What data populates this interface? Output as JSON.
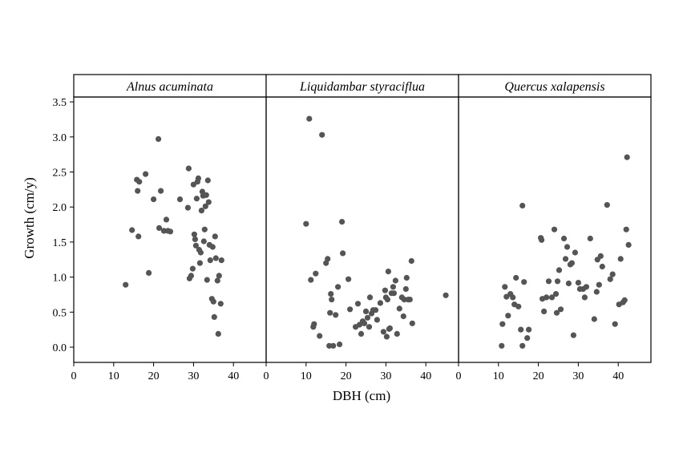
{
  "chart_data": [
    {
      "type": "scatter",
      "title": "Alnus acuminata",
      "xlabel": "DBH (cm)",
      "ylabel": "Growth (cm/y)",
      "xlim": [
        0,
        48
      ],
      "ylim": [
        -0.2,
        3.55
      ],
      "xticks": [
        0,
        10,
        20,
        30,
        40
      ],
      "yticks": [
        0.0,
        0.5,
        1.0,
        1.5,
        2.0,
        2.5,
        3.0,
        3.5
      ],
      "point_color": "#555555",
      "points": [
        [
          13.0,
          0.89
        ],
        [
          14.6,
          1.67
        ],
        [
          15.8,
          2.39
        ],
        [
          16.0,
          2.23
        ],
        [
          16.2,
          1.58
        ],
        [
          16.4,
          2.36
        ],
        [
          18.0,
          2.47
        ],
        [
          18.8,
          1.06
        ],
        [
          20.0,
          2.11
        ],
        [
          21.2,
          2.97
        ],
        [
          21.4,
          1.7
        ],
        [
          21.8,
          2.23
        ],
        [
          22.6,
          1.66
        ],
        [
          23.2,
          1.82
        ],
        [
          23.6,
          1.66
        ],
        [
          24.2,
          1.65
        ],
        [
          26.6,
          2.11
        ],
        [
          28.6,
          1.99
        ],
        [
          28.8,
          2.55
        ],
        [
          29.0,
          0.98
        ],
        [
          29.4,
          1.02
        ],
        [
          29.8,
          1.12
        ],
        [
          30.0,
          2.32
        ],
        [
          30.2,
          1.61
        ],
        [
          30.4,
          1.54
        ],
        [
          30.6,
          1.45
        ],
        [
          30.8,
          2.12
        ],
        [
          31.0,
          2.36
        ],
        [
          31.2,
          2.41
        ],
        [
          31.4,
          1.39
        ],
        [
          31.6,
          1.2
        ],
        [
          31.8,
          1.35
        ],
        [
          32.0,
          1.95
        ],
        [
          32.2,
          2.22
        ],
        [
          32.4,
          2.16
        ],
        [
          32.6,
          1.51
        ],
        [
          32.8,
          1.68
        ],
        [
          33.0,
          2.01
        ],
        [
          33.2,
          2.17
        ],
        [
          33.4,
          0.96
        ],
        [
          33.6,
          2.38
        ],
        [
          33.8,
          2.07
        ],
        [
          34.0,
          1.46
        ],
        [
          34.2,
          1.24
        ],
        [
          34.6,
          0.69
        ],
        [
          34.8,
          1.43
        ],
        [
          35.0,
          0.65
        ],
        [
          35.2,
          0.43
        ],
        [
          35.4,
          1.58
        ],
        [
          35.6,
          1.27
        ],
        [
          36.0,
          0.95
        ],
        [
          36.2,
          0.19
        ],
        [
          36.4,
          1.02
        ],
        [
          36.8,
          0.62
        ],
        [
          37.0,
          1.24
        ]
      ]
    },
    {
      "type": "scatter",
      "title": "Liquidambar styraciflua",
      "xlabel": "DBH (cm)",
      "ylabel": "Growth (cm/y)",
      "xlim": [
        0,
        48
      ],
      "ylim": [
        -0.2,
        3.55
      ],
      "xticks": [
        0,
        10,
        20,
        30,
        40
      ],
      "yticks": [
        0.0,
        0.5,
        1.0,
        1.5,
        2.0,
        2.5,
        3.0,
        3.5
      ],
      "point_color": "#555555",
      "points": [
        [
          10.0,
          1.76
        ],
        [
          10.8,
          3.26
        ],
        [
          11.2,
          0.96
        ],
        [
          11.8,
          0.29
        ],
        [
          12.0,
          0.33
        ],
        [
          12.4,
          1.05
        ],
        [
          13.4,
          0.16
        ],
        [
          14.0,
          3.03
        ],
        [
          15.0,
          1.2
        ],
        [
          15.4,
          1.26
        ],
        [
          15.8,
          0.02
        ],
        [
          16.0,
          0.49
        ],
        [
          16.2,
          0.76
        ],
        [
          16.4,
          0.68
        ],
        [
          16.8,
          0.02
        ],
        [
          17.4,
          0.46
        ],
        [
          18.0,
          0.86
        ],
        [
          18.4,
          0.04
        ],
        [
          19.0,
          1.79
        ],
        [
          19.2,
          1.34
        ],
        [
          20.6,
          0.97
        ],
        [
          21.0,
          0.54
        ],
        [
          22.4,
          0.29
        ],
        [
          23.0,
          0.62
        ],
        [
          23.4,
          0.32
        ],
        [
          23.8,
          0.19
        ],
        [
          24.2,
          0.37
        ],
        [
          24.6,
          0.34
        ],
        [
          25.0,
          0.51
        ],
        [
          25.4,
          0.42
        ],
        [
          25.8,
          0.29
        ],
        [
          26.0,
          0.71
        ],
        [
          26.4,
          0.48
        ],
        [
          26.8,
          0.53
        ],
        [
          27.4,
          0.53
        ],
        [
          27.8,
          0.39
        ],
        [
          28.6,
          0.63
        ],
        [
          29.4,
          0.22
        ],
        [
          29.8,
          0.81
        ],
        [
          30.0,
          0.71
        ],
        [
          30.2,
          0.15
        ],
        [
          30.4,
          0.68
        ],
        [
          30.6,
          1.08
        ],
        [
          30.8,
          0.26
        ],
        [
          31.0,
          0.27
        ],
        [
          31.4,
          0.77
        ],
        [
          31.8,
          0.86
        ],
        [
          32.0,
          0.77
        ],
        [
          32.4,
          0.95
        ],
        [
          32.8,
          0.19
        ],
        [
          33.4,
          0.55
        ],
        [
          34.0,
          0.71
        ],
        [
          34.4,
          0.44
        ],
        [
          34.6,
          0.68
        ],
        [
          35.0,
          0.83
        ],
        [
          35.2,
          0.99
        ],
        [
          35.6,
          0.68
        ],
        [
          36.0,
          0.68
        ],
        [
          36.4,
          1.23
        ],
        [
          36.6,
          0.34
        ],
        [
          45.0,
          0.74
        ]
      ]
    },
    {
      "type": "scatter",
      "title": "Quercus xalapensis",
      "xlabel": "DBH (cm)",
      "ylabel": "Growth (cm/y)",
      "xlim": [
        0,
        48
      ],
      "ylim": [
        -0.2,
        3.55
      ],
      "xticks": [
        0,
        10,
        20,
        30,
        40
      ],
      "yticks": [
        0.0,
        0.5,
        1.0,
        1.5,
        2.0,
        2.5,
        3.0,
        3.5
      ],
      "point_color": "#555555",
      "points": [
        [
          10.8,
          0.02
        ],
        [
          11.0,
          0.33
        ],
        [
          11.6,
          0.86
        ],
        [
          12.0,
          0.72
        ],
        [
          12.4,
          0.45
        ],
        [
          13.0,
          0.76
        ],
        [
          13.6,
          0.71
        ],
        [
          14.0,
          0.61
        ],
        [
          14.4,
          0.99
        ],
        [
          15.0,
          0.58
        ],
        [
          15.6,
          0.25
        ],
        [
          16.0,
          2.02
        ],
        [
          16.0,
          0.02
        ],
        [
          16.4,
          0.93
        ],
        [
          17.2,
          0.13
        ],
        [
          17.6,
          0.25
        ],
        [
          20.6,
          1.56
        ],
        [
          20.8,
          1.53
        ],
        [
          21.0,
          0.69
        ],
        [
          21.4,
          0.51
        ],
        [
          22.0,
          0.71
        ],
        [
          22.6,
          0.94
        ],
        [
          23.4,
          0.71
        ],
        [
          24.0,
          1.68
        ],
        [
          24.4,
          0.76
        ],
        [
          24.6,
          0.49
        ],
        [
          24.8,
          0.94
        ],
        [
          25.2,
          1.1
        ],
        [
          25.6,
          0.54
        ],
        [
          26.4,
          1.55
        ],
        [
          26.8,
          1.26
        ],
        [
          27.2,
          1.43
        ],
        [
          27.6,
          0.91
        ],
        [
          28.0,
          1.18
        ],
        [
          28.4,
          1.2
        ],
        [
          28.8,
          0.17
        ],
        [
          29.2,
          1.35
        ],
        [
          30.0,
          0.92
        ],
        [
          30.4,
          0.83
        ],
        [
          31.2,
          0.83
        ],
        [
          31.6,
          0.71
        ],
        [
          32.0,
          0.86
        ],
        [
          33.0,
          1.55
        ],
        [
          34.0,
          0.4
        ],
        [
          34.6,
          0.79
        ],
        [
          34.8,
          1.25
        ],
        [
          35.2,
          0.89
        ],
        [
          35.6,
          1.3
        ],
        [
          36.0,
          1.15
        ],
        [
          37.2,
          2.03
        ],
        [
          38.0,
          0.97
        ],
        [
          38.6,
          1.04
        ],
        [
          39.2,
          0.33
        ],
        [
          40.2,
          0.61
        ],
        [
          40.6,
          1.26
        ],
        [
          41.2,
          0.64
        ],
        [
          41.6,
          0.67
        ],
        [
          42.0,
          1.68
        ],
        [
          42.2,
          2.71
        ],
        [
          42.6,
          1.46
        ]
      ]
    }
  ]
}
